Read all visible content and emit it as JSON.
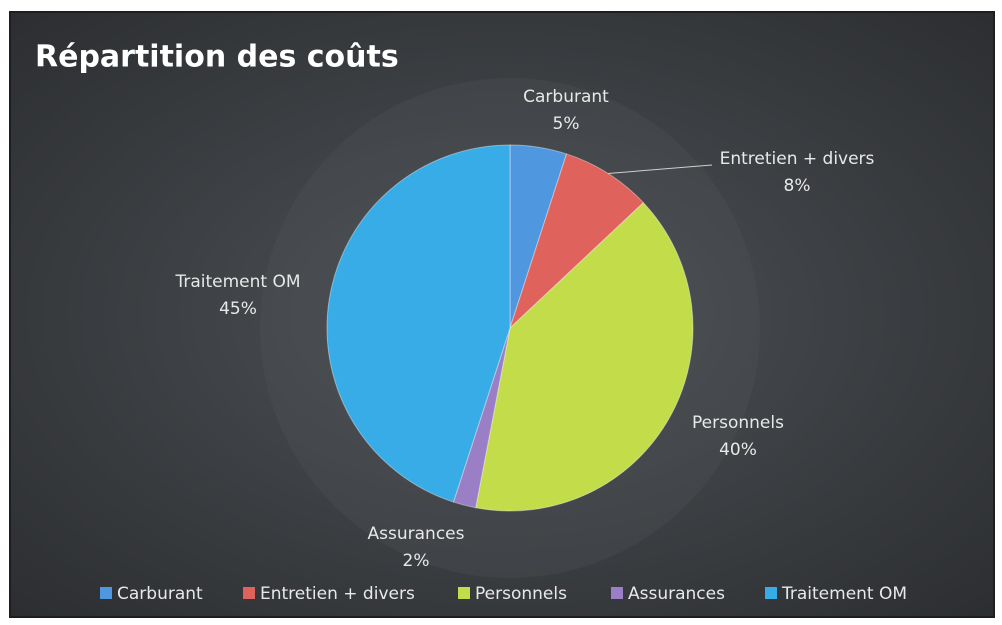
{
  "chart_data": {
    "type": "pie",
    "title": "Répartition des coûts",
    "categories": [
      "Carburant",
      "Entretien + divers",
      "Personnels",
      "Assurances",
      "Traitement OM"
    ],
    "values": [
      5,
      8,
      40,
      2,
      45
    ],
    "value_labels": [
      "5%",
      "8%",
      "40%",
      "2%",
      "45%"
    ],
    "colors": [
      "#4f97de",
      "#e0625c",
      "#c3dc4a",
      "#9a7fc6",
      "#37ace6"
    ],
    "legend": "bottom"
  }
}
